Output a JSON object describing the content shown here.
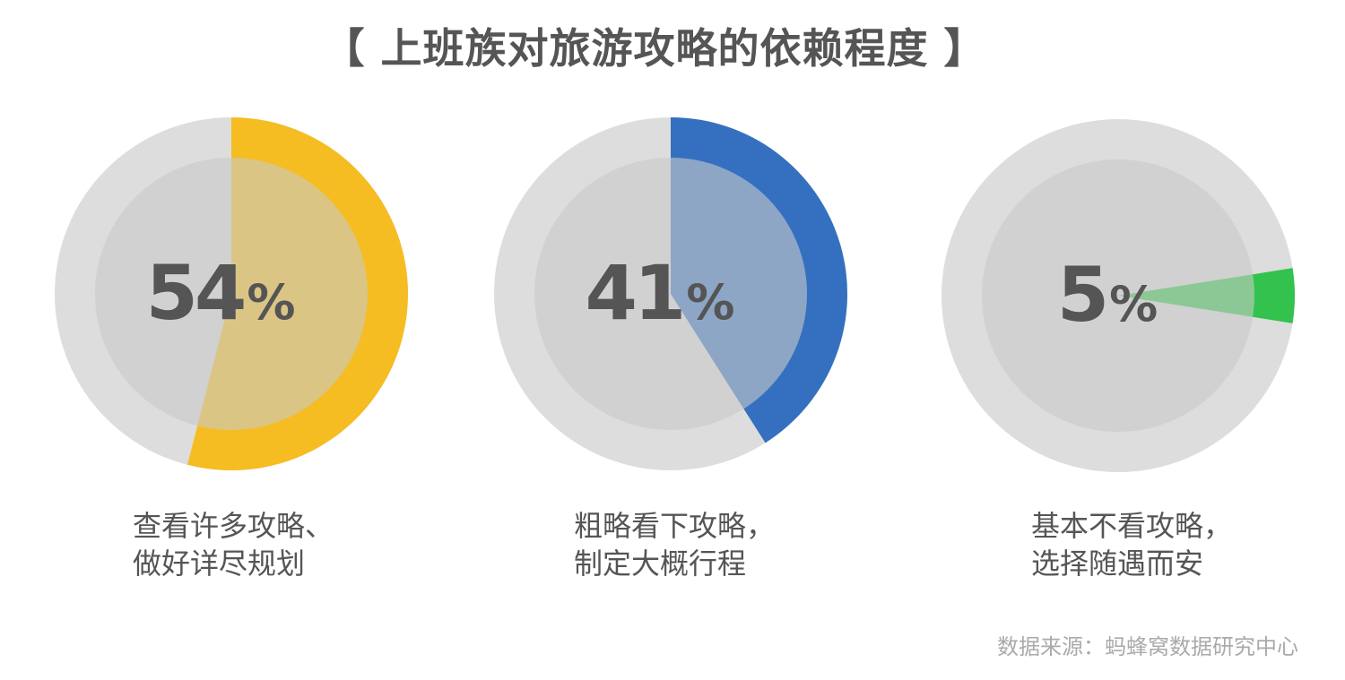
{
  "title": "【 上班族对旅游攻略的依赖程度 】",
  "colors": {
    "ring_bg": "#dcdddc",
    "inner_bg": "#c8c9c8",
    "text": "#555555",
    "source_text": "#aaaaaa"
  },
  "chart_data": [
    {
      "type": "pie",
      "value": 54,
      "value_label": "54",
      "unit": "%",
      "color": "#f5bd22",
      "label_lines": [
        "查看许多攻略、",
        "做好详尽规划"
      ]
    },
    {
      "type": "pie",
      "value": 41,
      "value_label": "41",
      "unit": "%",
      "color": "#3570c0",
      "label_lines": [
        "粗略看下攻略，",
        "制定大概行程"
      ]
    },
    {
      "type": "pie",
      "value": 5,
      "value_label": "5",
      "unit": "%",
      "color": "#33c24d",
      "label_lines": [
        "基本不看攻略，",
        "选择随遇而安"
      ]
    }
  ],
  "source": "数据来源：蚂蜂窝数据研究中心"
}
